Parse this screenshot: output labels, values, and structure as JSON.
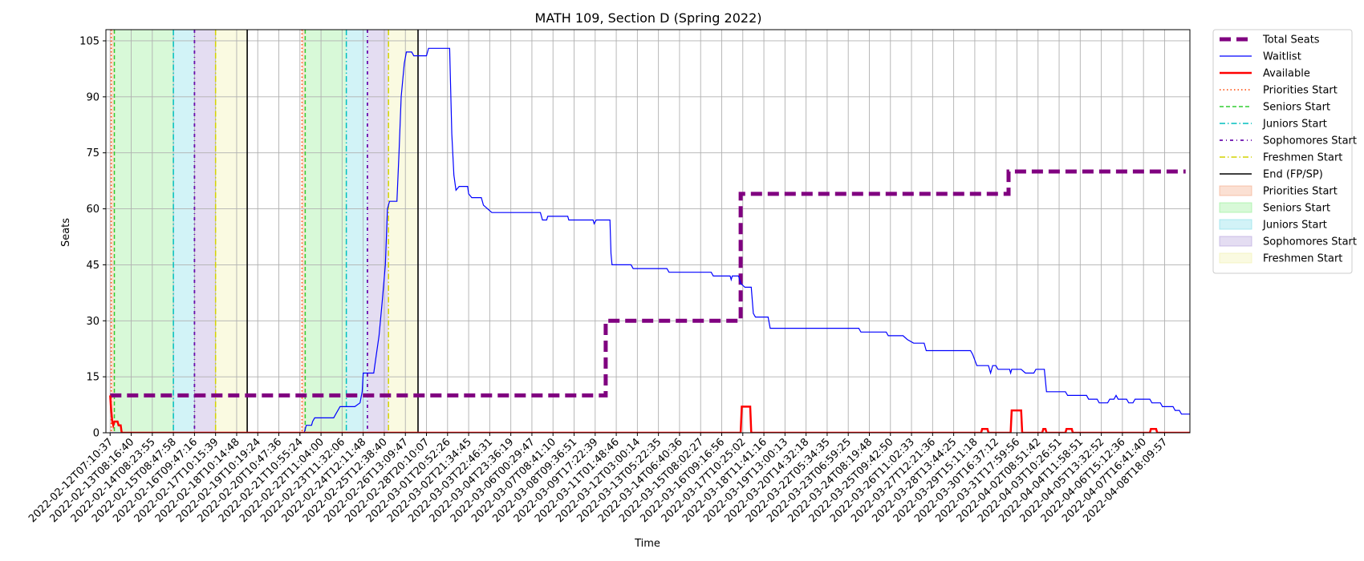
{
  "chart_data": {
    "type": "line",
    "title": "MATH 109, Section D (Spring 2022)",
    "xlabel": "Time",
    "ylabel": "Seats",
    "ylim": [
      0,
      108
    ],
    "yticks": [
      0,
      15,
      30,
      45,
      60,
      75,
      90,
      105
    ],
    "grid": true,
    "legend_position": "outside-right",
    "x_tick_labels": [
      "2022-02-12T07:10:37",
      "2022-02-13T08:16:40",
      "2022-02-14T08:23:55",
      "2022-02-15T08:47:58",
      "2022-02-16T09:47:16",
      "2022-02-17T10:15:39",
      "2022-02-18T10:14:48",
      "2022-02-19T10:19:24",
      "2022-02-20T10:47:36",
      "2022-02-21T10:55:24",
      "2022-02-22T11:04:00",
      "2022-02-23T11:32:06",
      "2022-02-24T12:11:48",
      "2022-02-25T12:38:40",
      "2022-02-26T13:09:47",
      "2022-02-28T20:10:07",
      "2022-03-01T20:52:26",
      "2022-03-02T21:34:45",
      "2022-03-03T22:46:31",
      "2022-03-04T23:36:19",
      "2022-03-06T00:29:47",
      "2022-03-07T08:41:10",
      "2022-03-08T09:36:51",
      "2022-03-09T17:22:39",
      "2022-03-11T01:48:46",
      "2022-03-12T03:00:14",
      "2022-03-13T05:22:35",
      "2022-03-14T06:40:36",
      "2022-03-15T08:02:27",
      "2022-03-16T09:16:56",
      "2022-03-17T10:25:02",
      "2022-03-18T11:41:16",
      "2022-03-19T13:00:13",
      "2022-03-20T14:32:18",
      "2022-03-22T05:34:35",
      "2022-03-23T06:59:25",
      "2022-03-24T08:19:48",
      "2022-03-25T09:42:50",
      "2022-03-26T11:02:33",
      "2022-03-27T12:21:36",
      "2022-03-28T13:44:25",
      "2022-03-29T15:11:18",
      "2022-03-30T16:37:12",
      "2022-03-31T17:59:56",
      "2022-04-02T08:51:42",
      "2022-04-03T10:26:51",
      "2022-04-04T11:58:51",
      "2022-04-05T13:32:52",
      "2022-04-06T15:12:36",
      "2022-04-07T16:41:40",
      "2022-04-08T18:09:57"
    ],
    "x_range_index": [
      0,
      51
    ],
    "series": [
      {
        "name": "Total Seats",
        "color": "#800080",
        "style": "dashed-thick",
        "points": [
          [
            0,
            10
          ],
          [
            23.5,
            10
          ],
          [
            23.5,
            30
          ],
          [
            29.9,
            30
          ],
          [
            29.9,
            64
          ],
          [
            42.6,
            64
          ],
          [
            42.6,
            70
          ],
          [
            51,
            70
          ]
        ]
      },
      {
        "name": "Waitlist",
        "color": "#0000ff",
        "style": "solid-thin",
        "points": [
          [
            0,
            0
          ],
          [
            9.2,
            0
          ],
          [
            9.3,
            2
          ],
          [
            9.55,
            2
          ],
          [
            9.6,
            3
          ],
          [
            9.7,
            4
          ],
          [
            10.6,
            4
          ],
          [
            10.7,
            5
          ],
          [
            10.9,
            7
          ],
          [
            11.6,
            7
          ],
          [
            11.85,
            8
          ],
          [
            11.95,
            11
          ],
          [
            12.0,
            16
          ],
          [
            12.5,
            16
          ],
          [
            12.6,
            20
          ],
          [
            12.75,
            26
          ],
          [
            12.9,
            35
          ],
          [
            13.05,
            45
          ],
          [
            13.15,
            60
          ],
          [
            13.25,
            62
          ],
          [
            13.6,
            62
          ],
          [
            13.7,
            75
          ],
          [
            13.8,
            90
          ],
          [
            13.95,
            99
          ],
          [
            14.05,
            102
          ],
          [
            14.3,
            102
          ],
          [
            14.4,
            101
          ],
          [
            15.0,
            101
          ],
          [
            15.1,
            103
          ],
          [
            16.1,
            103
          ],
          [
            16.2,
            80
          ],
          [
            16.3,
            69
          ],
          [
            16.4,
            65
          ],
          [
            16.55,
            66
          ],
          [
            16.95,
            66
          ],
          [
            17.0,
            64
          ],
          [
            17.15,
            63
          ],
          [
            17.6,
            63
          ],
          [
            17.7,
            61
          ],
          [
            17.9,
            60
          ],
          [
            18.1,
            59
          ],
          [
            20.4,
            59
          ],
          [
            20.5,
            57
          ],
          [
            20.7,
            57
          ],
          [
            20.75,
            58
          ],
          [
            21.7,
            58
          ],
          [
            21.75,
            57
          ],
          [
            22.9,
            57
          ],
          [
            22.95,
            56
          ],
          [
            23.05,
            57
          ],
          [
            23.7,
            57
          ],
          [
            23.75,
            48
          ],
          [
            23.8,
            45
          ],
          [
            24.7,
            45
          ],
          [
            24.8,
            44
          ],
          [
            26.4,
            44
          ],
          [
            26.5,
            43
          ],
          [
            28.5,
            43
          ],
          [
            28.6,
            42
          ],
          [
            29.4,
            42
          ],
          [
            29.45,
            41
          ],
          [
            29.5,
            42
          ],
          [
            29.8,
            42
          ],
          [
            29.9,
            40
          ],
          [
            30.1,
            39
          ],
          [
            30.4,
            39
          ],
          [
            30.5,
            32
          ],
          [
            30.6,
            31
          ],
          [
            31.2,
            31
          ],
          [
            31.3,
            28
          ],
          [
            35.5,
            28
          ],
          [
            35.6,
            27
          ],
          [
            36.8,
            27
          ],
          [
            36.9,
            26
          ],
          [
            37.6,
            26
          ],
          [
            37.8,
            25
          ],
          [
            38.1,
            24
          ],
          [
            38.6,
            24
          ],
          [
            38.7,
            22
          ],
          [
            40.8,
            22
          ],
          [
            40.9,
            21
          ],
          [
            41.1,
            18
          ],
          [
            41.65,
            18
          ],
          [
            41.75,
            16
          ],
          [
            41.85,
            18
          ],
          [
            42.0,
            18
          ],
          [
            42.1,
            17
          ],
          [
            42.65,
            17
          ],
          [
            42.7,
            16
          ],
          [
            42.75,
            17
          ],
          [
            43.2,
            17
          ],
          [
            43.4,
            16
          ],
          [
            43.8,
            16
          ],
          [
            43.9,
            17
          ],
          [
            44.3,
            17
          ],
          [
            44.4,
            11
          ],
          [
            45.3,
            11
          ],
          [
            45.4,
            10
          ],
          [
            46.3,
            10
          ],
          [
            46.4,
            9
          ],
          [
            46.8,
            9
          ],
          [
            46.9,
            8
          ],
          [
            47.3,
            8
          ],
          [
            47.4,
            9
          ],
          [
            47.6,
            9
          ],
          [
            47.7,
            10
          ],
          [
            47.8,
            9
          ],
          [
            48.2,
            9
          ],
          [
            48.3,
            8
          ],
          [
            48.5,
            8
          ],
          [
            48.6,
            9
          ],
          [
            49.3,
            9
          ],
          [
            49.4,
            8
          ],
          [
            49.8,
            8
          ],
          [
            49.9,
            7
          ],
          [
            50.4,
            7
          ],
          [
            50.5,
            6
          ],
          [
            50.7,
            6
          ],
          [
            50.8,
            5
          ],
          [
            51.6,
            5
          ],
          [
            51.7,
            4
          ],
          [
            51.8,
            3
          ],
          [
            51.95,
            2
          ],
          [
            52,
            2
          ]
        ]
      },
      {
        "name": "Available",
        "color": "#ff0000",
        "style": "solid-thick",
        "points": [
          [
            0,
            10
          ],
          [
            0.05,
            6
          ],
          [
            0.1,
            3
          ],
          [
            0.15,
            2
          ],
          [
            0.2,
            3
          ],
          [
            0.35,
            3
          ],
          [
            0.4,
            2
          ],
          [
            0.5,
            2
          ],
          [
            0.55,
            0
          ],
          [
            29.9,
            0
          ],
          [
            29.95,
            7
          ],
          [
            30.35,
            7
          ],
          [
            30.4,
            0
          ],
          [
            41.3,
            0
          ],
          [
            41.35,
            1
          ],
          [
            41.6,
            1
          ],
          [
            41.65,
            0
          ],
          [
            42.7,
            0
          ],
          [
            42.75,
            6
          ],
          [
            43.2,
            6
          ],
          [
            43.25,
            0
          ],
          [
            44.2,
            0
          ],
          [
            44.25,
            1
          ],
          [
            44.35,
            1
          ],
          [
            44.4,
            0
          ],
          [
            45.3,
            0
          ],
          [
            45.35,
            1
          ],
          [
            45.6,
            1
          ],
          [
            45.65,
            0
          ],
          [
            49.3,
            0
          ],
          [
            49.35,
            1
          ],
          [
            49.6,
            1
          ],
          [
            49.65,
            0
          ],
          [
            52,
            0
          ]
        ]
      }
    ],
    "vertical_markers": [
      {
        "name": "Priorities Start",
        "color": "#ff4500",
        "style": "dotted",
        "x": [
          0.05,
          9.1
        ]
      },
      {
        "name": "Seniors Start",
        "color": "#32cd32",
        "style": "dashed",
        "x": [
          0.2,
          9.25
        ]
      },
      {
        "name": "Juniors Start",
        "color": "#00bfbf",
        "style": "dashdot",
        "x": [
          3.0,
          11.2
        ]
      },
      {
        "name": "Sophomores Start",
        "color": "#6a0dad",
        "style": "dashdot-dense",
        "x": [
          4.0,
          12.2
        ]
      },
      {
        "name": "Freshmen Start",
        "color": "#d4d400",
        "style": "dashdot",
        "x": [
          5.0,
          13.2
        ]
      },
      {
        "name": "End (FP/SP)",
        "color": "#000000",
        "style": "solid",
        "x": [
          6.5,
          14.6
        ]
      }
    ],
    "shaded_regions": [
      {
        "name": "Priorities Start",
        "color": "#f4a582",
        "ranges": [
          [
            0.05,
            0.2
          ],
          [
            9.1,
            9.25
          ]
        ]
      },
      {
        "name": "Seniors Start",
        "color": "#90ee90",
        "ranges": [
          [
            0.2,
            3.0
          ],
          [
            9.25,
            11.2
          ]
        ]
      },
      {
        "name": "Juniors Start",
        "color": "#7fdde8",
        "ranges": [
          [
            3.0,
            4.0
          ],
          [
            11.2,
            12.2
          ]
        ]
      },
      {
        "name": "Sophomores Start",
        "color": "#b39ddb",
        "ranges": [
          [
            4.0,
            5.0
          ],
          [
            12.2,
            13.2
          ]
        ]
      },
      {
        "name": "Freshmen Start",
        "color": "#f0f0a8",
        "ranges": [
          [
            5.0,
            6.5
          ],
          [
            13.2,
            14.6
          ]
        ]
      }
    ],
    "legend": [
      {
        "label": "Total Seats",
        "kind": "line",
        "color": "#800080",
        "style": "dashed-thick"
      },
      {
        "label": "Waitlist",
        "kind": "line",
        "color": "#0000ff",
        "style": "solid-thin"
      },
      {
        "label": "Available",
        "kind": "line",
        "color": "#ff0000",
        "style": "solid-thick"
      },
      {
        "label": "Priorities Start",
        "kind": "line",
        "color": "#ff4500",
        "style": "dotted"
      },
      {
        "label": "Seniors Start",
        "kind": "line",
        "color": "#32cd32",
        "style": "dashed"
      },
      {
        "label": "Juniors Start",
        "kind": "line",
        "color": "#00bfbf",
        "style": "dashdot"
      },
      {
        "label": "Sophomores Start",
        "kind": "line",
        "color": "#6a0dad",
        "style": "dashdot-dense"
      },
      {
        "label": "Freshmen Start",
        "kind": "line",
        "color": "#d4d400",
        "style": "dashdot"
      },
      {
        "label": "End (FP/SP)",
        "kind": "line",
        "color": "#000000",
        "style": "solid"
      },
      {
        "label": "Priorities Start",
        "kind": "patch",
        "color": "#f4a582"
      },
      {
        "label": "Seniors Start",
        "kind": "patch",
        "color": "#90ee90"
      },
      {
        "label": "Juniors Start",
        "kind": "patch",
        "color": "#7fdde8"
      },
      {
        "label": "Sophomores Start",
        "kind": "patch",
        "color": "#b39ddb"
      },
      {
        "label": "Freshmen Start",
        "kind": "patch",
        "color": "#f0f0a8"
      }
    ]
  }
}
